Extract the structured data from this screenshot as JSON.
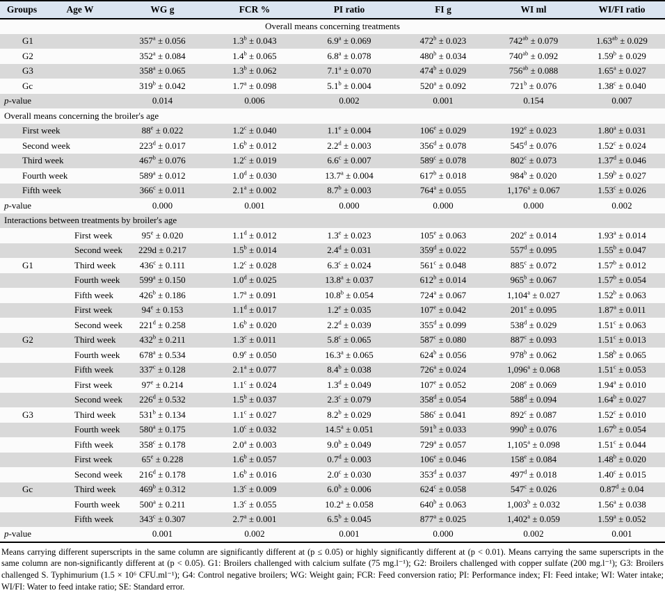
{
  "header": {
    "columns": [
      "Groups",
      "Age W",
      "WG g",
      "FCR %",
      "PI ratio",
      "FI g",
      "WI ml",
      "WI/FI ratio"
    ]
  },
  "colors": {
    "header_bg": "#dbe5f1",
    "stripe_bg": "#d9d9d9",
    "row_bg": "#fbfbfb",
    "border": "#000000"
  },
  "sections": [
    {
      "title": "Overall means concerning treatments",
      "align": "center",
      "rows": [
        {
          "type": "data",
          "label": "G1",
          "indent": false,
          "cells": [
            "357{a} ± 0.056",
            "1.3{b} ± 0.043",
            "6.9{a} ± 0.069",
            "472{b} ± 0.023",
            "742{ab} ± 0.079",
            "1.63{ab} ± 0.029"
          ]
        },
        {
          "type": "data",
          "label": "G2",
          "indent": false,
          "cells": [
            "352{a} ± 0.084",
            "1.4{b} ± 0.065",
            "6.8{a} ± 0.078",
            "480{b} ± 0.034",
            "740{ab} ± 0.092",
            "1.59{b} ± 0.029"
          ]
        },
        {
          "type": "data",
          "label": "G3",
          "indent": false,
          "cells": [
            "358{a} ± 0.065",
            "1.3{b} ± 0.062",
            "7.1{a} ± 0.070",
            "474{b} ± 0.029",
            "756{ab} ± 0.088",
            "1.65{a} ± 0.027"
          ]
        },
        {
          "type": "data",
          "label": "Gc",
          "indent": false,
          "cells": [
            "319{b} ± 0.042",
            "1.7{a} ± 0.098",
            "5.1{b} ± 0.004",
            "520{a} ± 0.092",
            "721{b} ± 0.076",
            "1.38{c} ± 0.040"
          ]
        },
        {
          "type": "pvalue",
          "label": "p-value",
          "cells": [
            "0.014",
            "0.006",
            "0.002",
            "0.001",
            "0.154",
            "0.007"
          ]
        }
      ]
    },
    {
      "title": "Overall means concerning the broiler's age",
      "align": "left",
      "rows": [
        {
          "type": "data",
          "label": "First week",
          "indent": true,
          "cells": [
            "88{e} ± 0.022",
            "1.2{c} ± 0.040",
            "1.1{e} ± 0.004",
            "106{e} ± 0.029",
            "192{e} ± 0.023",
            "1.80{a} ± 0.031"
          ]
        },
        {
          "type": "data",
          "label": "Second week",
          "indent": true,
          "cells": [
            "223{d} ± 0.017",
            "1.6{b} ± 0.012",
            "2.2{d} ± 0.003",
            "356{d} ± 0.078",
            "545{d} ± 0.076",
            "1.52{c} ± 0.024"
          ]
        },
        {
          "type": "data",
          "label": "Third week",
          "indent": true,
          "cells": [
            "467{b} ± 0.076",
            "1.2{c} ± 0.019",
            "6.6{c} ± 0.007",
            "589{c} ± 0.078",
            "802{c} ± 0.073",
            "1.37{d} ± 0.046"
          ]
        },
        {
          "type": "data",
          "label": "Fourth week",
          "indent": true,
          "cells": [
            "589{a} ± 0.012",
            "1.0{d} ± 0.030",
            "13.7{a} ± 0.004",
            "617{b} ± 0.018",
            "984{b} ± 0.020",
            "1.59{b} ± 0.027"
          ]
        },
        {
          "type": "data",
          "label": "Fifth week",
          "indent": true,
          "cells": [
            "366{c} ± 0.011",
            "2.1{a} ± 0.002",
            "8.7{b} ± 0.003",
            "764{a} ± 0.055",
            "1,176{a} ± 0.067",
            "1.53{c} ± 0.026"
          ]
        },
        {
          "type": "pvalue",
          "label": "p-value",
          "cells": [
            "0.000",
            "0.001",
            "0.000",
            "0.000",
            "0.000",
            "0.002"
          ]
        }
      ]
    },
    {
      "title": "Interactions between treatments by broiler's age",
      "align": "left",
      "groups": [
        {
          "label": "G1",
          "rows": [
            {
              "age": "First week",
              "cells": [
                "95{e} ± 0.020",
                "1.1{d} ± 0.012",
                "1.3{e} ± 0.023",
                "105{e} ± 0.063",
                "202{e} ± 0.014",
                "1.93{a} ± 0.014"
              ]
            },
            {
              "age": "Second week",
              "cells": [
                "229d ± 0.217",
                "1.5{b} ± 0.014",
                "2.4{d} ± 0.031",
                "359{d} ± 0.022",
                "557{d} ± 0.095",
                "1.55{b} ± 0.047"
              ]
            },
            {
              "age": "Third week",
              "cells": [
                "436{c} ± 0.111",
                "1.2{c} ± 0.028",
                "6.3{c} ± 0.024",
                "561{c} ± 0.048",
                "885{c} ± 0.072",
                "1.57{b} ± 0.012"
              ]
            },
            {
              "age": "Fourth week",
              "cells": [
                "599{a} ± 0.150",
                "1.0{d} ± 0.025",
                "13.8{a} ± 0.037",
                "612{b} ± 0.014",
                "965{b} ± 0.067",
                "1.57{b} ± 0.054"
              ]
            },
            {
              "age": "Fifth week",
              "cells": [
                "426{b} ± 0.186",
                "1.7{a} ± 0.091",
                "10.8{b} ± 0.054",
                "724{a} ± 0.067",
                "1,104{a} ± 0.027",
                "1.52{b} ± 0.063"
              ]
            }
          ]
        },
        {
          "label": "G2",
          "rows": [
            {
              "age": "First week",
              "cells": [
                "94{e} ± 0.153",
                "1.1{d} ± 0.017",
                "1.2{e} ± 0.035",
                "107{e} ± 0.042",
                "201{e} ± 0.095",
                "1.87{a} ± 0.011"
              ]
            },
            {
              "age": "Second week",
              "cells": [
                "221{d} ± 0.258",
                "1.6{b} ± 0.020",
                "2.2{d} ± 0.039",
                "355{d} ± 0.099",
                "538{d} ± 0.029",
                "1.51{c} ± 0.063"
              ]
            },
            {
              "age": "Third week",
              "cells": [
                "432{b} ± 0.211",
                "1.3{c} ± 0.011",
                "5.8{c} ± 0.065",
                "587{c} ± 0.080",
                "887{c} ± 0.093",
                "1.51{c} ± 0.013"
              ]
            },
            {
              "age": "Fourth week",
              "cells": [
                "678{a} ± 0.534",
                "0.9{e} ± 0.050",
                "16.3{a} ± 0.065",
                "624{b} ± 0.056",
                "978{b} ± 0.062",
                "1.58{b} ± 0.065"
              ]
            },
            {
              "age": "Fifth week",
              "cells": [
                "337{c} ± 0.128",
                "2.1{a} ± 0.077",
                "8.4{b} ± 0.038",
                "726{a} ± 0.024",
                "1,096{a} ± 0.068",
                "1.51{c} ± 0.053"
              ]
            }
          ]
        },
        {
          "label": "G3",
          "rows": [
            {
              "age": "First week",
              "cells": [
                "97{e} ± 0.214",
                "1.1{c} ± 0.024",
                "1.3{d} ± 0.049",
                "107{e} ± 0.052",
                "208{e} ± 0.069",
                "1.94{a} ± 0.010"
              ]
            },
            {
              "age": "Second week",
              "cells": [
                "226{d} ± 0.532",
                "1.5{b} ± 0.037",
                "2.3{c} ± 0.079",
                "358{d} ± 0.054",
                "588{d} ± 0.094",
                "1.64{b} ± 0.027"
              ]
            },
            {
              "age": "Third week",
              "cells": [
                "531{b} ± 0.134",
                "1.1{c} ± 0.027",
                "8.2{b} ± 0.029",
                "586{c} ± 0.041",
                "892{c} ± 0.087",
                "1.52{c} ± 0.010"
              ]
            },
            {
              "age": "Fourth week",
              "cells": [
                "580{a} ± 0.175",
                "1.0{c} ± 0.032",
                "14.5{a} ± 0.051",
                "591{b} ± 0.033",
                "990{b} ± 0.076",
                "1.67{b} ± 0.054"
              ]
            },
            {
              "age": "Fifth week",
              "cells": [
                "358{c} ± 0.178",
                "2.0{a} ± 0.003",
                "9.0{b} ± 0.049",
                "729{a} ± 0.057",
                "1,105{a} ± 0.098",
                "1.51{c} ± 0.044"
              ]
            }
          ]
        },
        {
          "label": "Gc",
          "rows": [
            {
              "age": "First week",
              "cells": [
                "65{e} ± 0.228",
                "1.6{b} ± 0.057",
                "0.7{d} ± 0.003",
                "106{e} ± 0.046",
                "158{e} ± 0.084",
                "1.48{b} ± 0.020"
              ]
            },
            {
              "age": "Second week",
              "cells": [
                "216{d} ± 0.178",
                "1.6{b} ± 0.016",
                "2.0{c} ± 0.030",
                "353{d} ± 0.037",
                "497{d} ± 0.018",
                "1.40{c} ± 0.015"
              ]
            },
            {
              "age": "Third week",
              "cells": [
                "469{b} ± 0.312",
                "1.3{c} ± 0.009",
                "6.0{b} ± 0.006",
                "624{c} ± 0.058",
                "547{c} ± 0.026",
                "0.87{d} ± 0.04"
              ]
            },
            {
              "age": "Fourth week",
              "cells": [
                "500{a} ± 0.211",
                "1.3{c} ± 0.055",
                "10.2{a} ± 0.058",
                "640{b} ± 0.063",
                "1,003{b} ± 0.032",
                "1.56{a} ± 0.038"
              ]
            },
            {
              "age": "Fifth week",
              "cells": [
                "343{c} ± 0.307",
                "2.7{a} ± 0.001",
                "6.5{b} ± 0.045",
                "877{a} ± 0.025",
                "1,402{a} ± 0.059",
                "1.59{a} ± 0.052"
              ]
            }
          ]
        }
      ],
      "pvalue": {
        "label": "p-value",
        "cells": [
          "0.001",
          "0.002",
          "0.001",
          "0.000",
          "0.002",
          "0.001"
        ]
      }
    }
  ],
  "footnote": "Means carrying different superscripts in the same column are significantly different at (p ≤ 0.05) or highly significantly different at (p < 0.01). Means carrying the same superscripts in the same column are non-significantly different at (p < 0.05). G1: Broilers challenged with calcium sulfate (75 mg.l⁻¹); G2: Broilers challenged with copper sulfate (200 mg.l⁻¹); G3: Broilers challenged S. Typhimurium (1.5 × 10⁶ CFU.ml⁻¹); G4: Control negative broilers; WG: Weight gain; FCR: Feed conversion ratio; PI: Performance index; FI: Feed intake; WI: Water intake; WI/FI: Water to feed intake ratio; SE: Standard error."
}
